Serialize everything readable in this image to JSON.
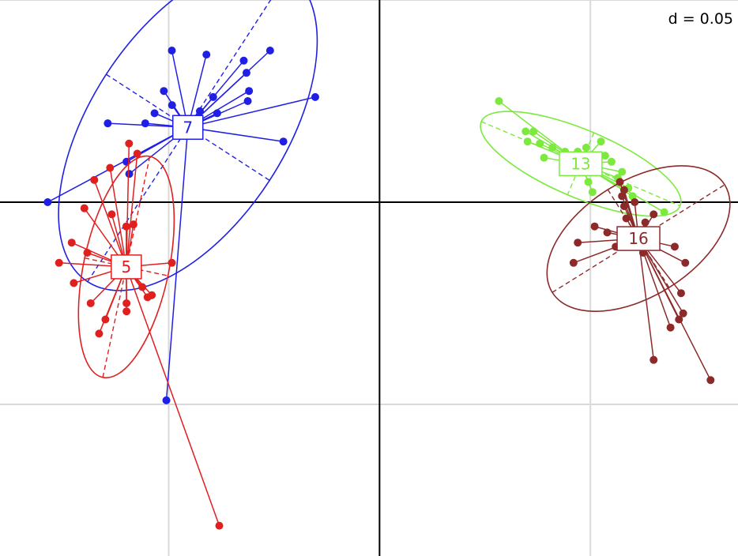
{
  "chart_data": {
    "type": "scatter",
    "title": "",
    "xlabel": "",
    "ylabel": "",
    "grid": true,
    "xlim": [
      -0.18,
      0.17
    ],
    "ylim": [
      -0.175,
      0.1
    ],
    "grid_step": 0.1,
    "scale_label": "d = 0.05",
    "groups": [
      {
        "label": "7",
        "color": "#1f1fe6",
        "center": [
          -0.0909,
          0.037
        ],
        "ellipse": {
          "rx": 0.0873,
          "ry": 0.0462,
          "angle_deg": -57
        },
        "points": [
          [
            -0.0985,
            0.075
          ],
          [
            -0.0821,
            0.073
          ],
          [
            -0.0644,
            0.07
          ],
          [
            -0.0519,
            0.075
          ],
          [
            -0.0619,
            0.055
          ],
          [
            -0.0625,
            0.05
          ],
          [
            -0.0305,
            0.052
          ],
          [
            -0.0456,
            0.03
          ],
          [
            -0.0789,
            0.052
          ],
          [
            -0.0852,
            0.045
          ],
          [
            -0.1023,
            0.055
          ],
          [
            -0.0984,
            0.048
          ],
          [
            -0.1067,
            0.044
          ],
          [
            -0.1289,
            0.039
          ],
          [
            -0.077,
            0.044
          ],
          [
            -0.0631,
            0.064
          ],
          [
            -0.1111,
            0.039
          ],
          [
            -0.12,
            0.02
          ],
          [
            -0.1187,
            0.014
          ],
          [
            -0.1574,
            0.0
          ],
          [
            -0.1011,
            -0.098
          ]
        ]
      },
      {
        "label": "5",
        "color": "#e01f1f",
        "center": [
          -0.1201,
          -0.032
        ],
        "ellipse": {
          "rx": 0.0536,
          "ry": 0.0202,
          "angle_deg": -78
        },
        "points": [
          [
            -0.1188,
            0.029
          ],
          [
            -0.1149,
            0.024
          ],
          [
            -0.1278,
            0.017
          ],
          [
            -0.1353,
            0.011
          ],
          [
            -0.14,
            -0.003
          ],
          [
            -0.127,
            -0.006
          ],
          [
            -0.1201,
            -0.012
          ],
          [
            -0.1167,
            -0.011
          ],
          [
            -0.146,
            -0.02
          ],
          [
            -0.1386,
            -0.025
          ],
          [
            -0.152,
            -0.03
          ],
          [
            -0.145,
            -0.04
          ],
          [
            -0.137,
            -0.05
          ],
          [
            -0.124,
            -0.035
          ],
          [
            -0.1125,
            -0.042
          ],
          [
            -0.108,
            -0.046
          ],
          [
            -0.12,
            -0.05
          ],
          [
            -0.11,
            -0.047
          ],
          [
            -0.12,
            -0.054
          ],
          [
            -0.13,
            -0.058
          ],
          [
            -0.133,
            -0.065
          ],
          [
            -0.0985,
            -0.03
          ],
          [
            -0.076,
            -0.16
          ]
        ]
      },
      {
        "label": "13",
        "color": "#7bea3d",
        "center": [
          0.0954,
          0.019
        ],
        "ellipse": {
          "rx": 0.0512,
          "ry": 0.016,
          "angle_deg": 23
        },
        "points": [
          [
            0.0566,
            0.05
          ],
          [
            0.0693,
            0.035
          ],
          [
            0.0702,
            0.03
          ],
          [
            0.073,
            0.035
          ],
          [
            0.076,
            0.029
          ],
          [
            0.082,
            0.027
          ],
          [
            0.088,
            0.025
          ],
          [
            0.094,
            0.025
          ],
          [
            0.098,
            0.027
          ],
          [
            0.105,
            0.03
          ],
          [
            0.107,
            0.023
          ],
          [
            0.11,
            0.02
          ],
          [
            0.078,
            0.022
          ],
          [
            0.089,
            0.02
          ],
          [
            0.099,
            0.01
          ],
          [
            0.101,
            0.005
          ],
          [
            0.113,
            0.012
          ],
          [
            0.115,
            0.015
          ],
          [
            0.118,
            0.007
          ],
          [
            0.12,
            0.003
          ],
          [
            0.135,
            -0.005
          ]
        ]
      },
      {
        "label": "16",
        "color": "#8c2a2a",
        "center": [
          0.1228,
          -0.018
        ],
        "ellipse": {
          "rx": 0.0482,
          "ry": 0.0274,
          "angle_deg": -32
        },
        "points": [
          [
            0.114,
            0.01
          ],
          [
            0.116,
            0.006
          ],
          [
            0.115,
            0.003
          ],
          [
            0.116,
            -0.002
          ],
          [
            0.121,
            0.0
          ],
          [
            0.117,
            -0.008
          ],
          [
            0.126,
            -0.01
          ],
          [
            0.13,
            -0.006
          ],
          [
            0.102,
            -0.012
          ],
          [
            0.108,
            -0.015
          ],
          [
            0.112,
            -0.022
          ],
          [
            0.125,
            -0.025
          ],
          [
            0.094,
            -0.02
          ],
          [
            0.092,
            -0.03
          ],
          [
            0.14,
            -0.022
          ],
          [
            0.145,
            -0.03
          ],
          [
            0.143,
            -0.045
          ],
          [
            0.142,
            -0.058
          ],
          [
            0.138,
            -0.062
          ],
          [
            0.13,
            -0.078
          ],
          [
            0.157,
            -0.088
          ],
          [
            0.144,
            -0.055
          ]
        ]
      }
    ]
  }
}
